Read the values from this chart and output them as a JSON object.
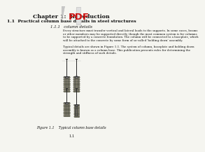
{
  "title": "Chapter 1:  Introduction",
  "subtitle": "1.1  Practical column base details in steel structures",
  "section": "1.1.1   column details",
  "body_lines": [
    "Every structure must transfer vertical and lateral loads to the supports. In some cases, beams",
    "or other members may be supported directly, though the most common system is for columns",
    "to be supported by a concrete foundation. The column will be connected to a baseplate, which",
    "will be attached to the concrete by some form of so-called 'holding down' assembly.",
    "",
    "Typical details are shown in Figure 1.1. The system of column, baseplate and holding down",
    "assembly is known as a column base. This publication presents rules for determining the",
    "strength and stiffness of such details."
  ],
  "figure_caption": "Figure 1.1    Typical column base details",
  "page_number": "1.1",
  "bg": "#f5f5f0",
  "text_color": "#111111",
  "pdf_color": "#cc1111",
  "corner_color": "#c8c8c8",
  "diagram_ground_color": "#c8c0b0",
  "diagram_line_color": "#333333",
  "diagram_bolt_color": "#555555"
}
